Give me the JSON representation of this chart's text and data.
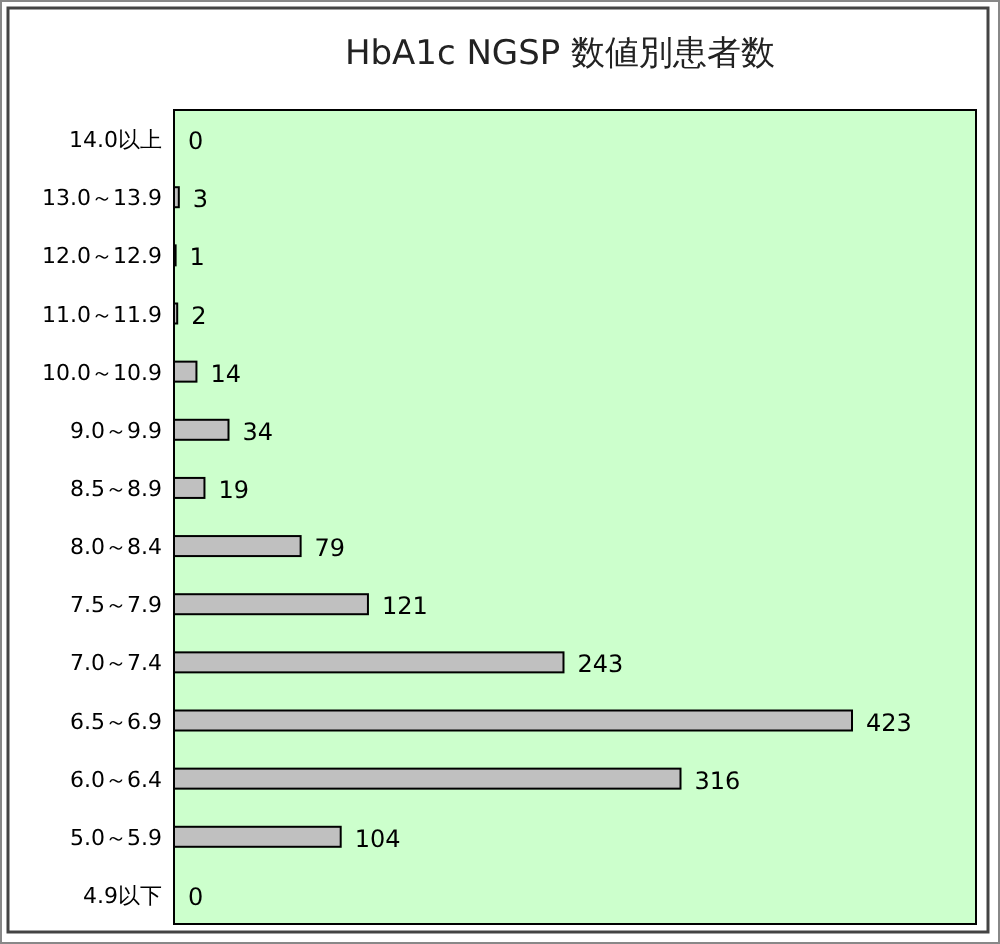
{
  "chart_data": {
    "type": "bar",
    "orientation": "horizontal",
    "title": "HbA1c NGSP 数値別患者数",
    "categories": [
      "14.0以上",
      "13.0～13.9",
      "12.0～12.9",
      "11.0～11.9",
      "10.0～10.9",
      "9.0～9.9",
      "8.5～8.9",
      "8.0～8.4",
      "7.5～7.9",
      "7.0～7.4",
      "6.5～6.9",
      "6.0～6.4",
      "5.0～5.9",
      "4.9以下"
    ],
    "values": [
      0,
      3,
      1,
      2,
      14,
      34,
      19,
      79,
      121,
      243,
      423,
      316,
      104,
      0
    ],
    "color": "#c0c0c0",
    "data_labels": true
  }
}
